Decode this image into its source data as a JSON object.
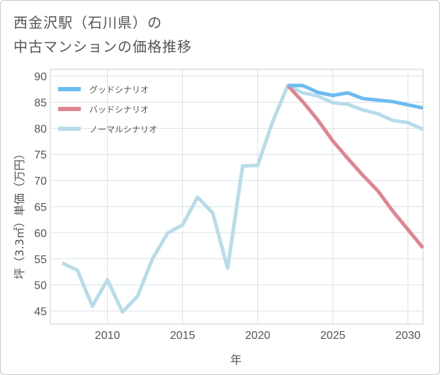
{
  "title": {
    "line1": "西金沢駅（石川県）の",
    "line2": "中古マンションの価格推移"
  },
  "chart_data": {
    "type": "line",
    "xlabel": "年",
    "ylabel": "坪（3.3㎡）単価（万円）",
    "xlim": [
      2006.2,
      2031
    ],
    "ylim": [
      42.5,
      91.3
    ],
    "xticks": [
      2010,
      2015,
      2020,
      2025,
      2030
    ],
    "yticks": [
      45,
      50,
      55,
      60,
      65,
      70,
      75,
      80,
      85,
      90
    ],
    "legend_position": "top-left",
    "series": [
      {
        "name": "グッドシナリオ",
        "color": "#6cbbf0",
        "x": [
          2022,
          2023,
          2024,
          2025,
          2026,
          2027,
          2028,
          2029,
          2030,
          2031
        ],
        "y": [
          88.2,
          88.2,
          86.9,
          86.3,
          86.8,
          85.7,
          85.4,
          85.1,
          84.5,
          83.9
        ]
      },
      {
        "name": "バッドシナリオ",
        "color": "#e0848f",
        "x": [
          2022,
          2023,
          2024,
          2025,
          2026,
          2027,
          2028,
          2029,
          2030,
          2031
        ],
        "y": [
          88.2,
          85.1,
          81.6,
          77.6,
          74.2,
          71.0,
          68.0,
          64.1,
          60.6,
          57.1
        ]
      },
      {
        "name": "ノーマルシナリオ",
        "color": "#b7dcea",
        "x": [
          2007,
          2008,
          2009,
          2010,
          2011,
          2012,
          2013,
          2014,
          2015,
          2016,
          2017,
          2018,
          2019,
          2020,
          2021,
          2022,
          2023,
          2024,
          2025,
          2026,
          2027,
          2028,
          2029,
          2030,
          2031
        ],
        "y": [
          54.2,
          52.8,
          45.9,
          51.0,
          44.8,
          47.8,
          55.0,
          59.9,
          61.5,
          66.8,
          63.8,
          53.2,
          72.8,
          72.9,
          81.3,
          88.2,
          86.8,
          86.2,
          84.9,
          84.6,
          83.5,
          82.8,
          81.5,
          81.1,
          79.8
        ]
      }
    ]
  }
}
